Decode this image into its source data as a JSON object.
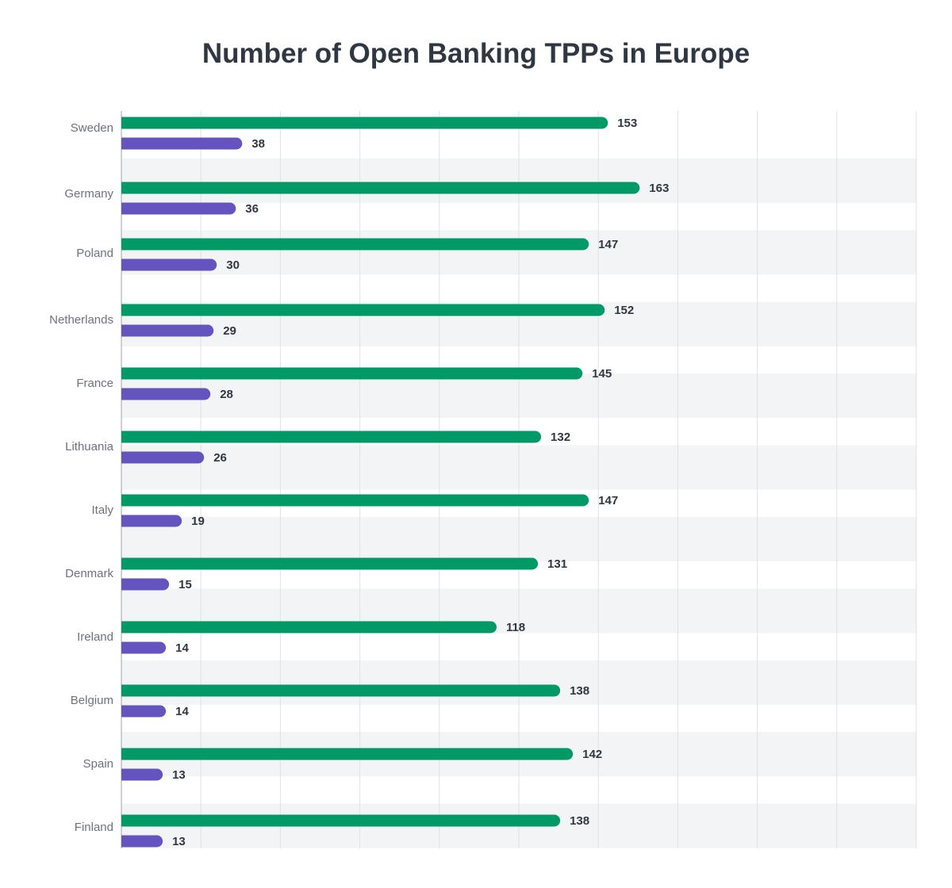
{
  "chart_data": {
    "type": "bar",
    "orientation": "horizontal",
    "title": "Number of Open Banking TPPs in Europe",
    "xlabel": "",
    "ylabel": "",
    "xlim": [
      0,
      250
    ],
    "grid": true,
    "categories": [
      "Sweden",
      "Germany",
      "Poland",
      "Netherlands",
      "France",
      "Lithuania",
      "Italy",
      "Denmark",
      "Ireland",
      "Belgium",
      "Spain",
      "Finland"
    ],
    "series": [
      {
        "values": [
          153,
          163,
          147,
          152,
          145,
          132,
          147,
          131,
          118,
          138,
          142,
          138
        ],
        "color": "#019a66"
      },
      {
        "values": [
          38,
          36,
          30,
          29,
          28,
          26,
          19,
          15,
          14,
          14,
          13,
          13
        ],
        "color": "#6554c0"
      }
    ]
  }
}
